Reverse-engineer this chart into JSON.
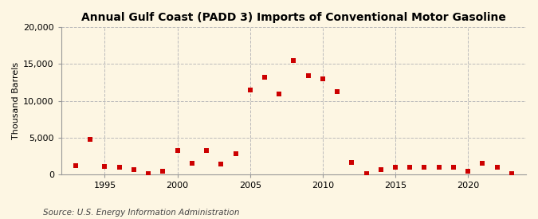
{
  "title": "Annual Gulf Coast (PADD 3) Imports of Conventional Motor Gasoline",
  "ylabel": "Thousand Barrels",
  "source": "Source: U.S. Energy Information Administration",
  "background_color": "#fdf6e3",
  "plot_bg_color": "#fdf6e3",
  "marker_color": "#cc0000",
  "grid_color": "#bbbbbb",
  "ylim": [
    0,
    20000
  ],
  "yticks": [
    0,
    5000,
    10000,
    15000,
    20000
  ],
  "xticks": [
    1995,
    2000,
    2005,
    2010,
    2015,
    2020
  ],
  "xlim": [
    1992,
    2024
  ],
  "years": [
    1993,
    1994,
    1995,
    1996,
    1997,
    1998,
    1999,
    2000,
    2001,
    2002,
    2003,
    2004,
    2005,
    2006,
    2007,
    2008,
    2009,
    2010,
    2011,
    2012,
    2013,
    2014,
    2015,
    2016,
    2017,
    2018,
    2019,
    2020,
    2021,
    2022,
    2023
  ],
  "values": [
    1200,
    4800,
    1100,
    1000,
    600,
    100,
    400,
    3200,
    1500,
    3200,
    1400,
    2800,
    11500,
    13200,
    10900,
    15500,
    13400,
    13000,
    11300,
    1600,
    100,
    700,
    1000,
    1000,
    1000,
    1000,
    1000,
    400,
    1500,
    1000,
    100
  ],
  "title_fontsize": 10,
  "tick_fontsize": 8,
  "ylabel_fontsize": 8,
  "source_fontsize": 7.5,
  "marker_size": 22
}
